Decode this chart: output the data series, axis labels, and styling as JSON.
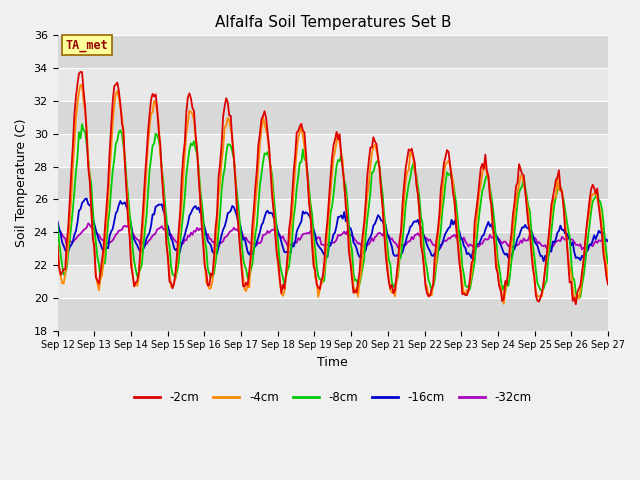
{
  "title": "Alfalfa Soil Temperatures Set B",
  "xlabel": "Time",
  "ylabel": "Soil Temperature (C)",
  "ylim": [
    18,
    36
  ],
  "yticks": [
    18,
    20,
    22,
    24,
    26,
    28,
    30,
    32,
    34,
    36
  ],
  "x_tick_labels": [
    "Sep 12",
    "Sep 13",
    "Sep 14",
    "Sep 15",
    "Sep 16",
    "Sep 17",
    "Sep 18",
    "Sep 19",
    "Sep 20",
    "Sep 21",
    "Sep 22",
    "Sep 23",
    "Sep 24",
    "Sep 25",
    "Sep 26",
    "Sep 27"
  ],
  "fig_bg": "#f0f0f0",
  "plot_bg_light": "#e8e8e8",
  "plot_bg_dark": "#d8d8d8",
  "line_colors": {
    "-2cm": "#dd0000",
    "-4cm": "#ff8800",
    "-8cm": "#00cc00",
    "-16cm": "#0000cc",
    "-32cm": "#aa00bb"
  },
  "annotation_text": "TA_met",
  "annotation_color": "#990000",
  "annotation_bg": "#ffff99",
  "annotation_border": "#996600"
}
